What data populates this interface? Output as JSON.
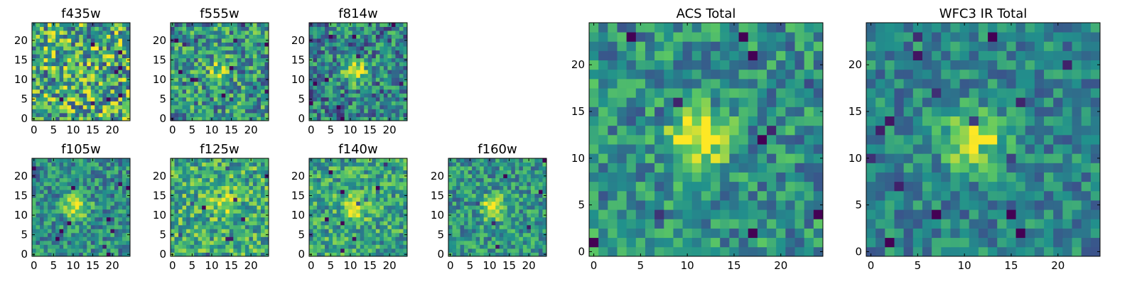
{
  "chart_data": [
    {
      "type": "heatmap",
      "title": "f435w",
      "grid": false,
      "xlim": [
        -0.5,
        24.5
      ],
      "ylim": [
        -0.5,
        24.5
      ],
      "x_ticks": [
        0,
        5,
        10,
        15,
        20
      ],
      "y_ticks": [
        0,
        5,
        10,
        15,
        20
      ],
      "source_peak": [
        11,
        11
      ],
      "source_strength": 0.0,
      "noise": 0.4,
      "background": 0.62
    },
    {
      "type": "heatmap",
      "title": "f555w",
      "grid": false,
      "xlim": [
        -0.5,
        24.5
      ],
      "ylim": [
        -0.5,
        24.5
      ],
      "x_ticks": [
        0,
        5,
        10,
        15,
        20
      ],
      "y_ticks": [
        0,
        5,
        10,
        15,
        20
      ],
      "source_peak": [
        12,
        12
      ],
      "source_strength": 0.35,
      "noise": 0.32,
      "background": 0.52
    },
    {
      "type": "heatmap",
      "title": "f814w",
      "grid": false,
      "xlim": [
        -0.5,
        24.5
      ],
      "ylim": [
        -0.5,
        24.5
      ],
      "x_ticks": [
        0,
        5,
        10,
        15,
        20
      ],
      "y_ticks": [
        0,
        5,
        10,
        15,
        20
      ],
      "source_peak": [
        11,
        12
      ],
      "source_strength": 0.5,
      "noise": 0.3,
      "background": 0.45
    },
    {
      "type": "heatmap",
      "title": "f105w",
      "grid": false,
      "xlim": [
        -0.5,
        24.5
      ],
      "ylim": [
        -0.5,
        24.5
      ],
      "x_ticks": [
        0,
        5,
        10,
        15,
        20
      ],
      "y_ticks": [
        0,
        5,
        10,
        15,
        20
      ],
      "source_peak": [
        11,
        12
      ],
      "source_strength": 0.5,
      "noise": 0.25,
      "background": 0.48
    },
    {
      "type": "heatmap",
      "title": "f125w",
      "grid": false,
      "xlim": [
        -0.5,
        24.5
      ],
      "ylim": [
        -0.5,
        24.5
      ],
      "x_ticks": [
        0,
        5,
        10,
        15,
        20
      ],
      "y_ticks": [
        0,
        5,
        10,
        15,
        20
      ],
      "source_peak": [
        13,
        13
      ],
      "source_strength": 0.3,
      "noise": 0.28,
      "background": 0.62
    },
    {
      "type": "heatmap",
      "title": "f140w",
      "grid": false,
      "xlim": [
        -0.5,
        24.5
      ],
      "ylim": [
        -0.5,
        24.5
      ],
      "x_ticks": [
        0,
        5,
        10,
        15,
        20
      ],
      "y_ticks": [
        0,
        5,
        10,
        15,
        20
      ],
      "source_peak": [
        11,
        12
      ],
      "source_strength": 0.4,
      "noise": 0.26,
      "background": 0.58
    },
    {
      "type": "heatmap",
      "title": "f160w",
      "grid": false,
      "xlim": [
        -0.5,
        24.5
      ],
      "ylim": [
        -0.5,
        24.5
      ],
      "x_ticks": [
        0,
        5,
        10,
        15,
        20
      ],
      "y_ticks": [
        0,
        5,
        10,
        15,
        20
      ],
      "source_peak": [
        11,
        12
      ],
      "source_strength": 0.45,
      "noise": 0.24,
      "background": 0.52
    },
    {
      "type": "heatmap",
      "title": "ACS Total",
      "grid": false,
      "xlim": [
        -0.5,
        24.5
      ],
      "ylim": [
        -0.5,
        24.5
      ],
      "x_ticks": [
        0,
        5,
        10,
        15,
        20
      ],
      "y_ticks": [
        0,
        5,
        10,
        15,
        20
      ],
      "source_peak": [
        11,
        12
      ],
      "source_strength": 0.55,
      "noise": 0.24,
      "background": 0.5
    },
    {
      "type": "heatmap",
      "title": "WFC3 IR Total",
      "grid": false,
      "xlim": [
        -0.5,
        24.5
      ],
      "ylim": [
        -0.5,
        24.5
      ],
      "x_ticks": [
        0,
        5,
        10,
        15,
        20
      ],
      "y_ticks": [
        0,
        5,
        10,
        15,
        20
      ],
      "source_peak": [
        11,
        12
      ],
      "source_strength": 0.55,
      "noise": 0.2,
      "background": 0.45
    }
  ],
  "colormap": [
    "#440154",
    "#3b528b",
    "#21918c",
    "#5ec962",
    "#fde725"
  ],
  "image_size": 25
}
